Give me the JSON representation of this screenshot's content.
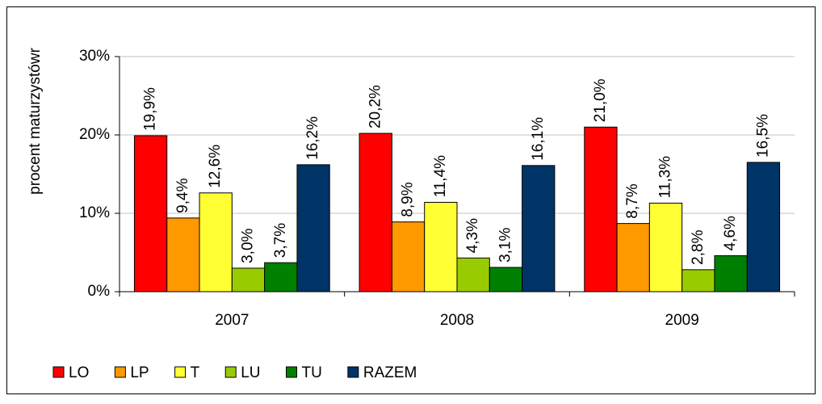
{
  "chart_data": {
    "type": "bar",
    "y_label": "procent maturzystówr",
    "categories": [
      "2007",
      "2008",
      "2009"
    ],
    "series": [
      {
        "name": "LO",
        "color": "#ff0000",
        "values": [
          19.9,
          20.2,
          21.0
        ],
        "value_labels": [
          "19,9%",
          "20,2%",
          "21,0%"
        ]
      },
      {
        "name": "LP",
        "color": "#ff9900",
        "values": [
          9.4,
          8.9,
          8.7
        ],
        "value_labels": [
          "9,4%",
          "8,9%",
          "8,7%"
        ]
      },
      {
        "name": "T",
        "color": "#ffff33",
        "values": [
          12.6,
          11.4,
          11.3
        ],
        "value_labels": [
          "12,6%",
          "11,4%",
          "11,3%"
        ]
      },
      {
        "name": "LU",
        "color": "#99cc00",
        "values": [
          3.0,
          4.3,
          2.8
        ],
        "value_labels": [
          "3,0%",
          "4,3%",
          "2,8%"
        ]
      },
      {
        "name": "TU",
        "color": "#008000",
        "values": [
          3.7,
          3.1,
          4.6
        ],
        "value_labels": [
          "3,7%",
          "3,1%",
          "4,6%"
        ]
      },
      {
        "name": "RAZEM",
        "color": "#003366",
        "values": [
          16.2,
          16.1,
          16.5
        ],
        "value_labels": [
          "16,2%",
          "16,1%",
          "16,5%"
        ]
      }
    ],
    "ylim": [
      0,
      30
    ],
    "yticks": [
      {
        "value": 0,
        "label": "0%"
      },
      {
        "value": 10,
        "label": "10%"
      },
      {
        "value": 20,
        "label": "20%"
      },
      {
        "value": 30,
        "label": "30%"
      }
    ],
    "grid": true,
    "legend": "bottom"
  }
}
